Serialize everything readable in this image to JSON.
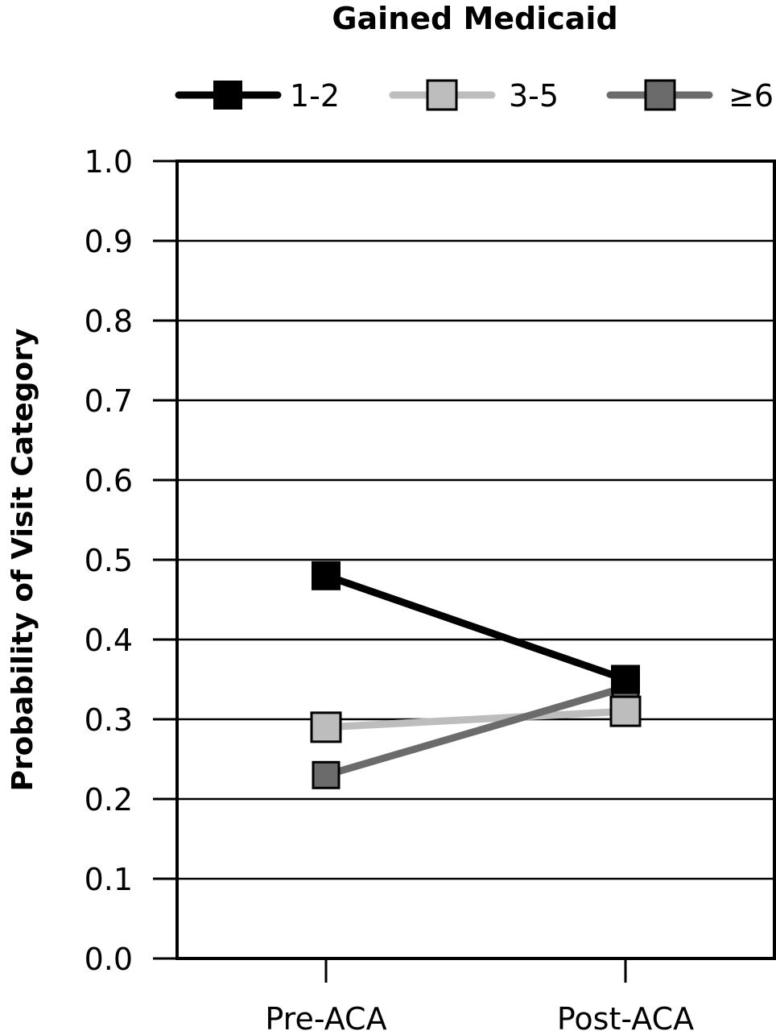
{
  "chart_data": {
    "type": "line",
    "title": "Gained Medicaid",
    "xlabel": "",
    "ylabel": "Probability of Visit Category",
    "categories": [
      "Pre-ACA",
      "Post-ACA"
    ],
    "ylim": [
      0.0,
      1.0
    ],
    "yticks": [
      "0.0",
      "0.1",
      "0.2",
      "0.3",
      "0.4",
      "0.5",
      "0.6",
      "0.7",
      "0.8",
      "0.9",
      "1.0"
    ],
    "grid": true,
    "legend_position": "top",
    "series": [
      {
        "name": "1-2",
        "values": [
          0.48,
          0.35
        ],
        "color": "#000000"
      },
      {
        "name": "3-5",
        "values": [
          0.29,
          0.31
        ],
        "color": "#bdbdbd"
      },
      {
        "name": "≥6",
        "values": [
          0.23,
          0.34
        ],
        "color": "#6b6b6b"
      }
    ]
  }
}
